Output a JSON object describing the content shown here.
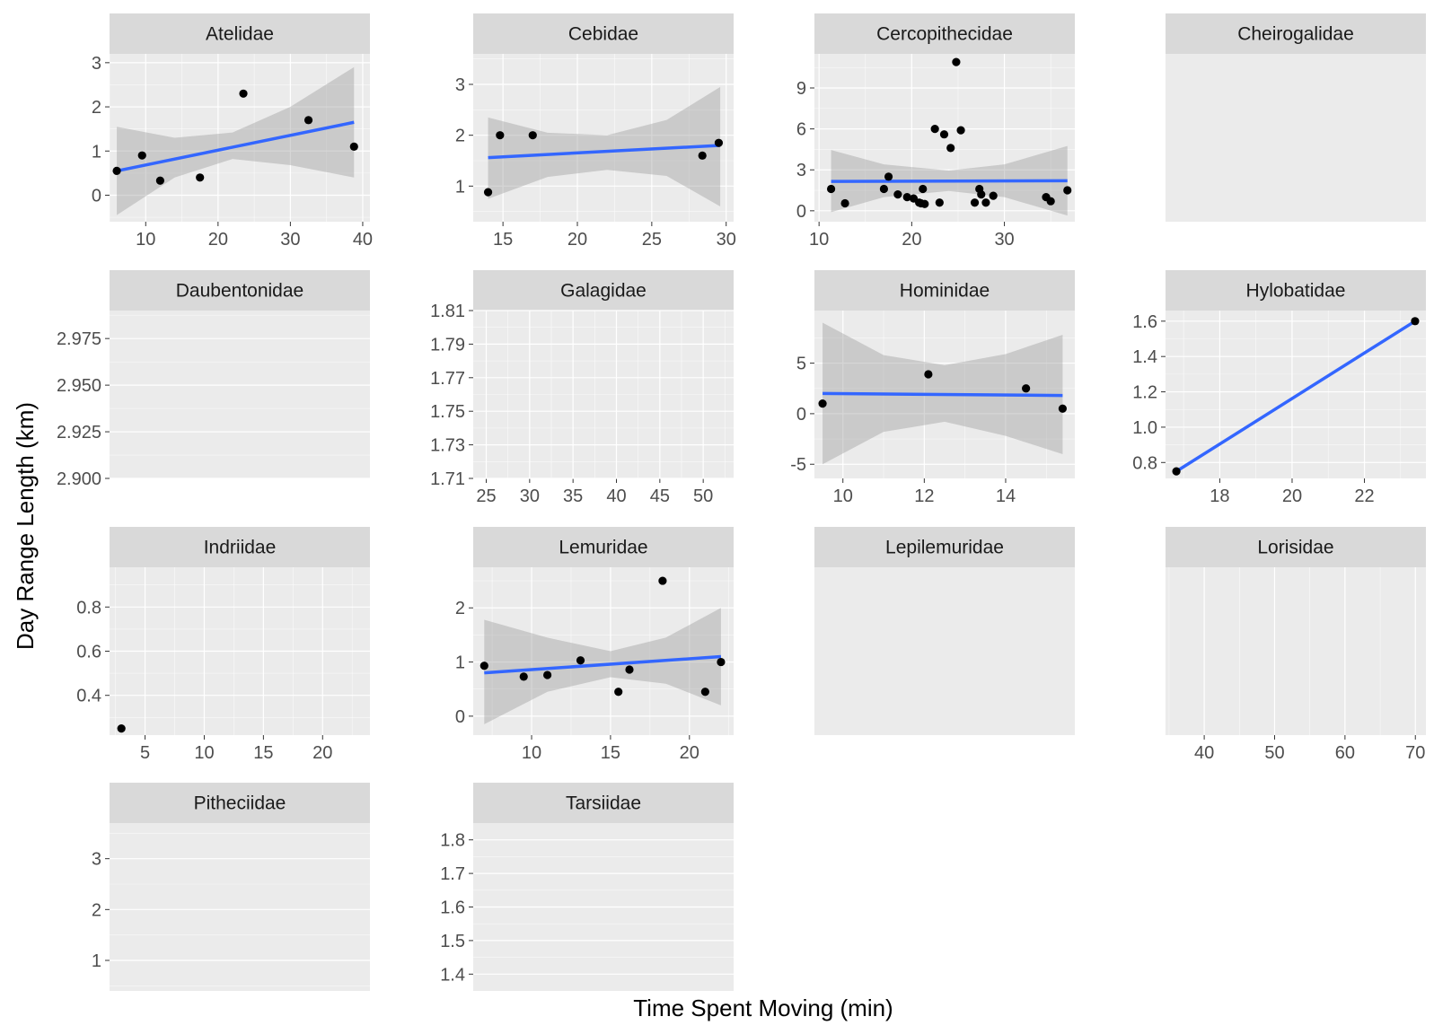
{
  "chart_data": {
    "type": "scatter",
    "xlabel": "Time Spent Moving (min)",
    "ylabel": "Day Range Length (km)",
    "facet_scales": "free",
    "grid": true,
    "colors": {
      "panel_bg": "#EBEBEB",
      "strip_bg": "#D9D9D9",
      "grid_major": "#FFFFFF",
      "point": "#000000",
      "fit_line": "#3366FF",
      "ribbon": "#999999"
    },
    "panels": [
      {
        "family": "Atelidae",
        "xlim": [
          5,
          41
        ],
        "ylim": [
          -0.6,
          3.2
        ],
        "xticks": [
          10,
          20,
          30,
          40
        ],
        "yticks": [
          0,
          1,
          2,
          3
        ],
        "points": [
          [
            6,
            0.55
          ],
          [
            9.5,
            0.9
          ],
          [
            12,
            0.33
          ],
          [
            17.5,
            0.4
          ],
          [
            23.5,
            2.3
          ],
          [
            32.5,
            1.7
          ],
          [
            38.8,
            1.1
          ]
        ],
        "fit": {
          "x": [
            6,
            38.8
          ],
          "y": [
            0.55,
            1.65
          ]
        },
        "band": {
          "x": [
            6,
            14,
            22,
            30,
            38.8
          ],
          "lo": [
            -0.45,
            0.4,
            0.82,
            0.68,
            0.4
          ],
          "hi": [
            1.55,
            1.3,
            1.42,
            2.0,
            2.9
          ]
        }
      },
      {
        "family": "Cebidae",
        "xlim": [
          13,
          30.5
        ],
        "ylim": [
          0.3,
          3.6
        ],
        "xticks": [
          15,
          20,
          25,
          30
        ],
        "yticks": [
          1,
          2,
          3
        ],
        "points": [
          [
            14,
            0.88
          ],
          [
            14.8,
            2.0
          ],
          [
            17,
            2.0
          ],
          [
            28.4,
            1.6
          ],
          [
            29.5,
            1.85
          ]
        ],
        "fit": {
          "x": [
            14,
            29.6
          ],
          "y": [
            1.56,
            1.8
          ]
        },
        "band": {
          "x": [
            14,
            18,
            22,
            26,
            29.6
          ],
          "lo": [
            0.75,
            1.18,
            1.32,
            1.2,
            0.6
          ],
          "hi": [
            2.35,
            2.05,
            2.0,
            2.3,
            2.95
          ]
        }
      },
      {
        "family": "Cercopithecidae",
        "xlim": [
          9.5,
          37.6
        ],
        "ylim": [
          -0.8,
          11.5
        ],
        "xticks": [
          10,
          20,
          30
        ],
        "yticks": [
          0,
          3,
          6,
          9
        ],
        "points": [
          [
            11.3,
            1.6
          ],
          [
            12.8,
            0.55
          ],
          [
            17,
            1.6
          ],
          [
            17.5,
            2.5
          ],
          [
            18.5,
            1.2
          ],
          [
            19.5,
            1.0
          ],
          [
            20.2,
            0.9
          ],
          [
            20.8,
            0.6
          ],
          [
            21.2,
            1.6
          ],
          [
            21,
            0.55
          ],
          [
            21.4,
            0.5
          ],
          [
            22.5,
            6.0
          ],
          [
            23,
            0.6
          ],
          [
            23.5,
            5.6
          ],
          [
            24.2,
            4.6
          ],
          [
            24.8,
            10.9
          ],
          [
            25.3,
            5.9
          ],
          [
            26.8,
            0.6
          ],
          [
            27.3,
            1.6
          ],
          [
            27.5,
            1.2
          ],
          [
            28,
            0.6
          ],
          [
            28.8,
            1.1
          ],
          [
            34.5,
            1.0
          ],
          [
            35,
            0.7
          ],
          [
            36.8,
            1.5
          ]
        ],
        "fit": {
          "x": [
            11.3,
            36.8
          ],
          "y": [
            2.15,
            2.2
          ]
        },
        "band": {
          "x": [
            11.3,
            17,
            24,
            30,
            36.8
          ],
          "lo": [
            -0.1,
            1.0,
            1.45,
            1.0,
            -0.35
          ],
          "hi": [
            4.45,
            3.4,
            2.95,
            3.4,
            4.75
          ]
        }
      },
      {
        "family": "Cheirogalidae",
        "empty": true,
        "has_axes": false,
        "xticks": [],
        "yticks": [],
        "points": []
      },
      {
        "family": "Daubentonidae",
        "xlim": [
          0,
          1
        ],
        "ylim": [
          2.9,
          2.99
        ],
        "xticks": [],
        "yticks": [
          2.9,
          2.925,
          2.95,
          2.975
        ],
        "ytick_labels": [
          "2.900",
          "2.925",
          "2.950",
          "2.975"
        ],
        "points": []
      },
      {
        "family": "Galagidae",
        "xlim": [
          23.5,
          53.5
        ],
        "ylim": [
          1.71,
          1.81
        ],
        "xticks": [
          25,
          30,
          35,
          40,
          45,
          50
        ],
        "yticks": [
          1.71,
          1.73,
          1.75,
          1.77,
          1.79,
          1.81
        ],
        "points": []
      },
      {
        "family": "Hominidae",
        "xlim": [
          9.3,
          15.7
        ],
        "ylim": [
          -6.4,
          10.2
        ],
        "xticks": [
          10,
          12,
          14
        ],
        "yticks": [
          -5,
          0,
          5
        ],
        "points": [
          [
            9.5,
            1.0
          ],
          [
            12.1,
            3.9
          ],
          [
            14.5,
            2.5
          ],
          [
            15.4,
            0.5
          ]
        ],
        "fit": {
          "x": [
            9.5,
            15.4
          ],
          "y": [
            2.0,
            1.8
          ]
        },
        "band": {
          "x": [
            9.5,
            11,
            12.5,
            14,
            15.4
          ],
          "lo": [
            -5.0,
            -1.8,
            -0.8,
            -2.2,
            -4.0
          ],
          "hi": [
            9.0,
            5.8,
            4.8,
            5.9,
            7.8
          ]
        }
      },
      {
        "family": "Hylobatidae",
        "xlim": [
          16.5,
          23.7
        ],
        "ylim": [
          0.71,
          1.66
        ],
        "xticks": [
          18,
          20,
          22
        ],
        "yticks": [
          0.8,
          1.0,
          1.2,
          1.4,
          1.6
        ],
        "ytick_labels": [
          "0.8",
          "1.0",
          "1.2",
          "1.4",
          "1.6"
        ],
        "points": [
          [
            16.8,
            0.75
          ],
          [
            23.4,
            1.6
          ]
        ],
        "fit": {
          "x": [
            16.8,
            23.4
          ],
          "y": [
            0.75,
            1.6
          ]
        }
      },
      {
        "family": "Indriidae",
        "xlim": [
          2,
          24
        ],
        "ylim": [
          0.22,
          0.98
        ],
        "xticks": [
          5,
          10,
          15,
          20
        ],
        "yticks": [
          0.4,
          0.6,
          0.8
        ],
        "points": [
          [
            3,
            0.25
          ]
        ]
      },
      {
        "family": "Lemuridae",
        "xlim": [
          6.3,
          22.8
        ],
        "ylim": [
          -0.35,
          2.75
        ],
        "xticks": [
          10,
          15,
          20
        ],
        "yticks": [
          0,
          1,
          2
        ],
        "points": [
          [
            7,
            0.93
          ],
          [
            9.5,
            0.73
          ],
          [
            11,
            0.76
          ],
          [
            13.1,
            1.03
          ],
          [
            15.5,
            0.45
          ],
          [
            16.2,
            0.86
          ],
          [
            18.3,
            2.5
          ],
          [
            21,
            0.45
          ],
          [
            22,
            1.0
          ]
        ],
        "fit": {
          "x": [
            7,
            22
          ],
          "y": [
            0.8,
            1.1
          ]
        },
        "band": {
          "x": [
            7,
            11,
            15,
            18.5,
            22
          ],
          "lo": [
            -0.15,
            0.45,
            0.72,
            0.6,
            0.2
          ],
          "hi": [
            1.78,
            1.45,
            1.2,
            1.45,
            2.0
          ]
        }
      },
      {
        "family": "Lepilemuridae",
        "empty": true,
        "has_axes": false,
        "xticks": [],
        "yticks": [],
        "points": []
      },
      {
        "family": "Lorisidae",
        "xlim": [
          34.5,
          71.5
        ],
        "ylim": [
          0,
          1
        ],
        "xticks": [
          40,
          50,
          60,
          70
        ],
        "yticks": [],
        "points": []
      },
      {
        "family": "Pitheciidae",
        "xlim": [
          0,
          1
        ],
        "ylim": [
          0.4,
          3.7
        ],
        "xticks": [],
        "yticks": [
          1,
          2,
          3
        ],
        "points": []
      },
      {
        "family": "Tarsiidae",
        "xlim": [
          0,
          1
        ],
        "ylim": [
          1.35,
          1.85
        ],
        "xticks": [],
        "yticks": [
          1.4,
          1.5,
          1.6,
          1.7,
          1.8
        ],
        "ytick_labels": [
          "1.4",
          "1.5",
          "1.6",
          "1.7",
          "1.8"
        ],
        "points": []
      }
    ]
  }
}
